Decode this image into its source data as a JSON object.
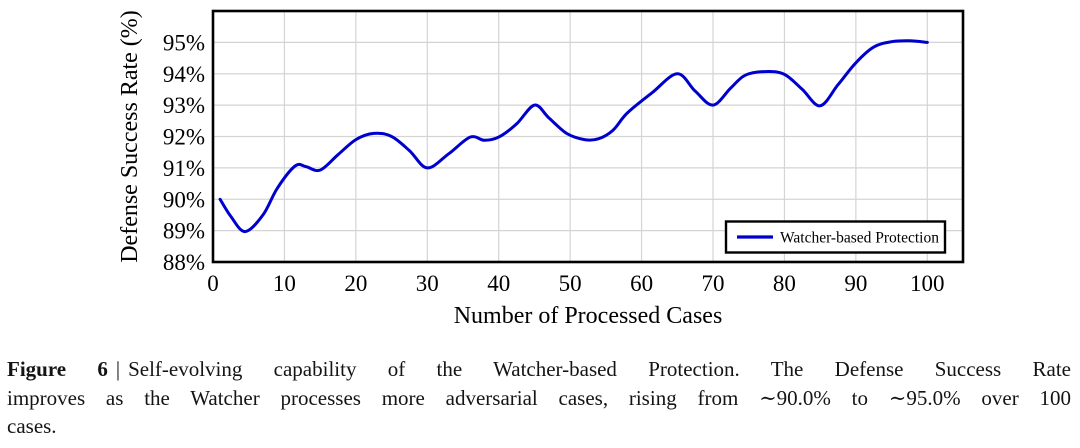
{
  "figure": {
    "caption": {
      "label": "Figure 6",
      "separator": "|",
      "line1_rest": "Self-evolving capability of the Watcher-based Protection. The Defense Success Rate",
      "line2": "improves as the Watcher processes more adversarial cases, rising from ∼90.0% to ∼95.0% over 100",
      "line3": "cases."
    }
  },
  "colors": {
    "line": "#0000cd",
    "grid": "#d4d4d4",
    "axis": "#000000",
    "background": "#ffffff",
    "legend_background": "#ffffff"
  },
  "chart_data": {
    "type": "line",
    "title": "",
    "xlabel": "Number of Processed Cases",
    "ylabel": "Defense Success Rate (%)",
    "xlim": [
      0,
      105
    ],
    "ylim": [
      88,
      96
    ],
    "xticks": [
      0,
      10,
      20,
      30,
      40,
      50,
      60,
      70,
      80,
      90,
      100
    ],
    "yticks": [
      88,
      89,
      90,
      91,
      92,
      93,
      94,
      95
    ],
    "ytick_suffix": "%",
    "grid": true,
    "legend": {
      "position": "lower right",
      "entries": [
        {
          "label": "Watcher-based Protection",
          "color": "#0000cd"
        }
      ]
    },
    "series": [
      {
        "name": "Watcher-based Protection",
        "color": "#0000cd",
        "points": [
          [
            1,
            90.0
          ],
          [
            2.5,
            89.45
          ],
          [
            4.5,
            88.97
          ],
          [
            7,
            89.5
          ],
          [
            9,
            90.35
          ],
          [
            11.5,
            91.06
          ],
          [
            13,
            91.04
          ],
          [
            15,
            90.93
          ],
          [
            17.5,
            91.42
          ],
          [
            20,
            91.9
          ],
          [
            22.5,
            92.1
          ],
          [
            25,
            92.0
          ],
          [
            27.5,
            91.55
          ],
          [
            30,
            91.0
          ],
          [
            33,
            91.45
          ],
          [
            36,
            91.98
          ],
          [
            38,
            91.88
          ],
          [
            40,
            91.98
          ],
          [
            42.5,
            92.4
          ],
          [
            45,
            93.0
          ],
          [
            47,
            92.6
          ],
          [
            49.5,
            92.1
          ],
          [
            52,
            91.9
          ],
          [
            54,
            91.93
          ],
          [
            56,
            92.2
          ],
          [
            58,
            92.75
          ],
          [
            61.5,
            93.4
          ],
          [
            65,
            94.0
          ],
          [
            67.5,
            93.45
          ],
          [
            70,
            93.0
          ],
          [
            72.5,
            93.55
          ],
          [
            74.5,
            93.95
          ],
          [
            77.3,
            94.07
          ],
          [
            80,
            93.98
          ],
          [
            82.5,
            93.5
          ],
          [
            85,
            92.98
          ],
          [
            87.5,
            93.65
          ],
          [
            90,
            94.35
          ],
          [
            92.5,
            94.85
          ],
          [
            95,
            95.02
          ],
          [
            97.5,
            95.05
          ],
          [
            100,
            95.0
          ]
        ]
      }
    ]
  }
}
